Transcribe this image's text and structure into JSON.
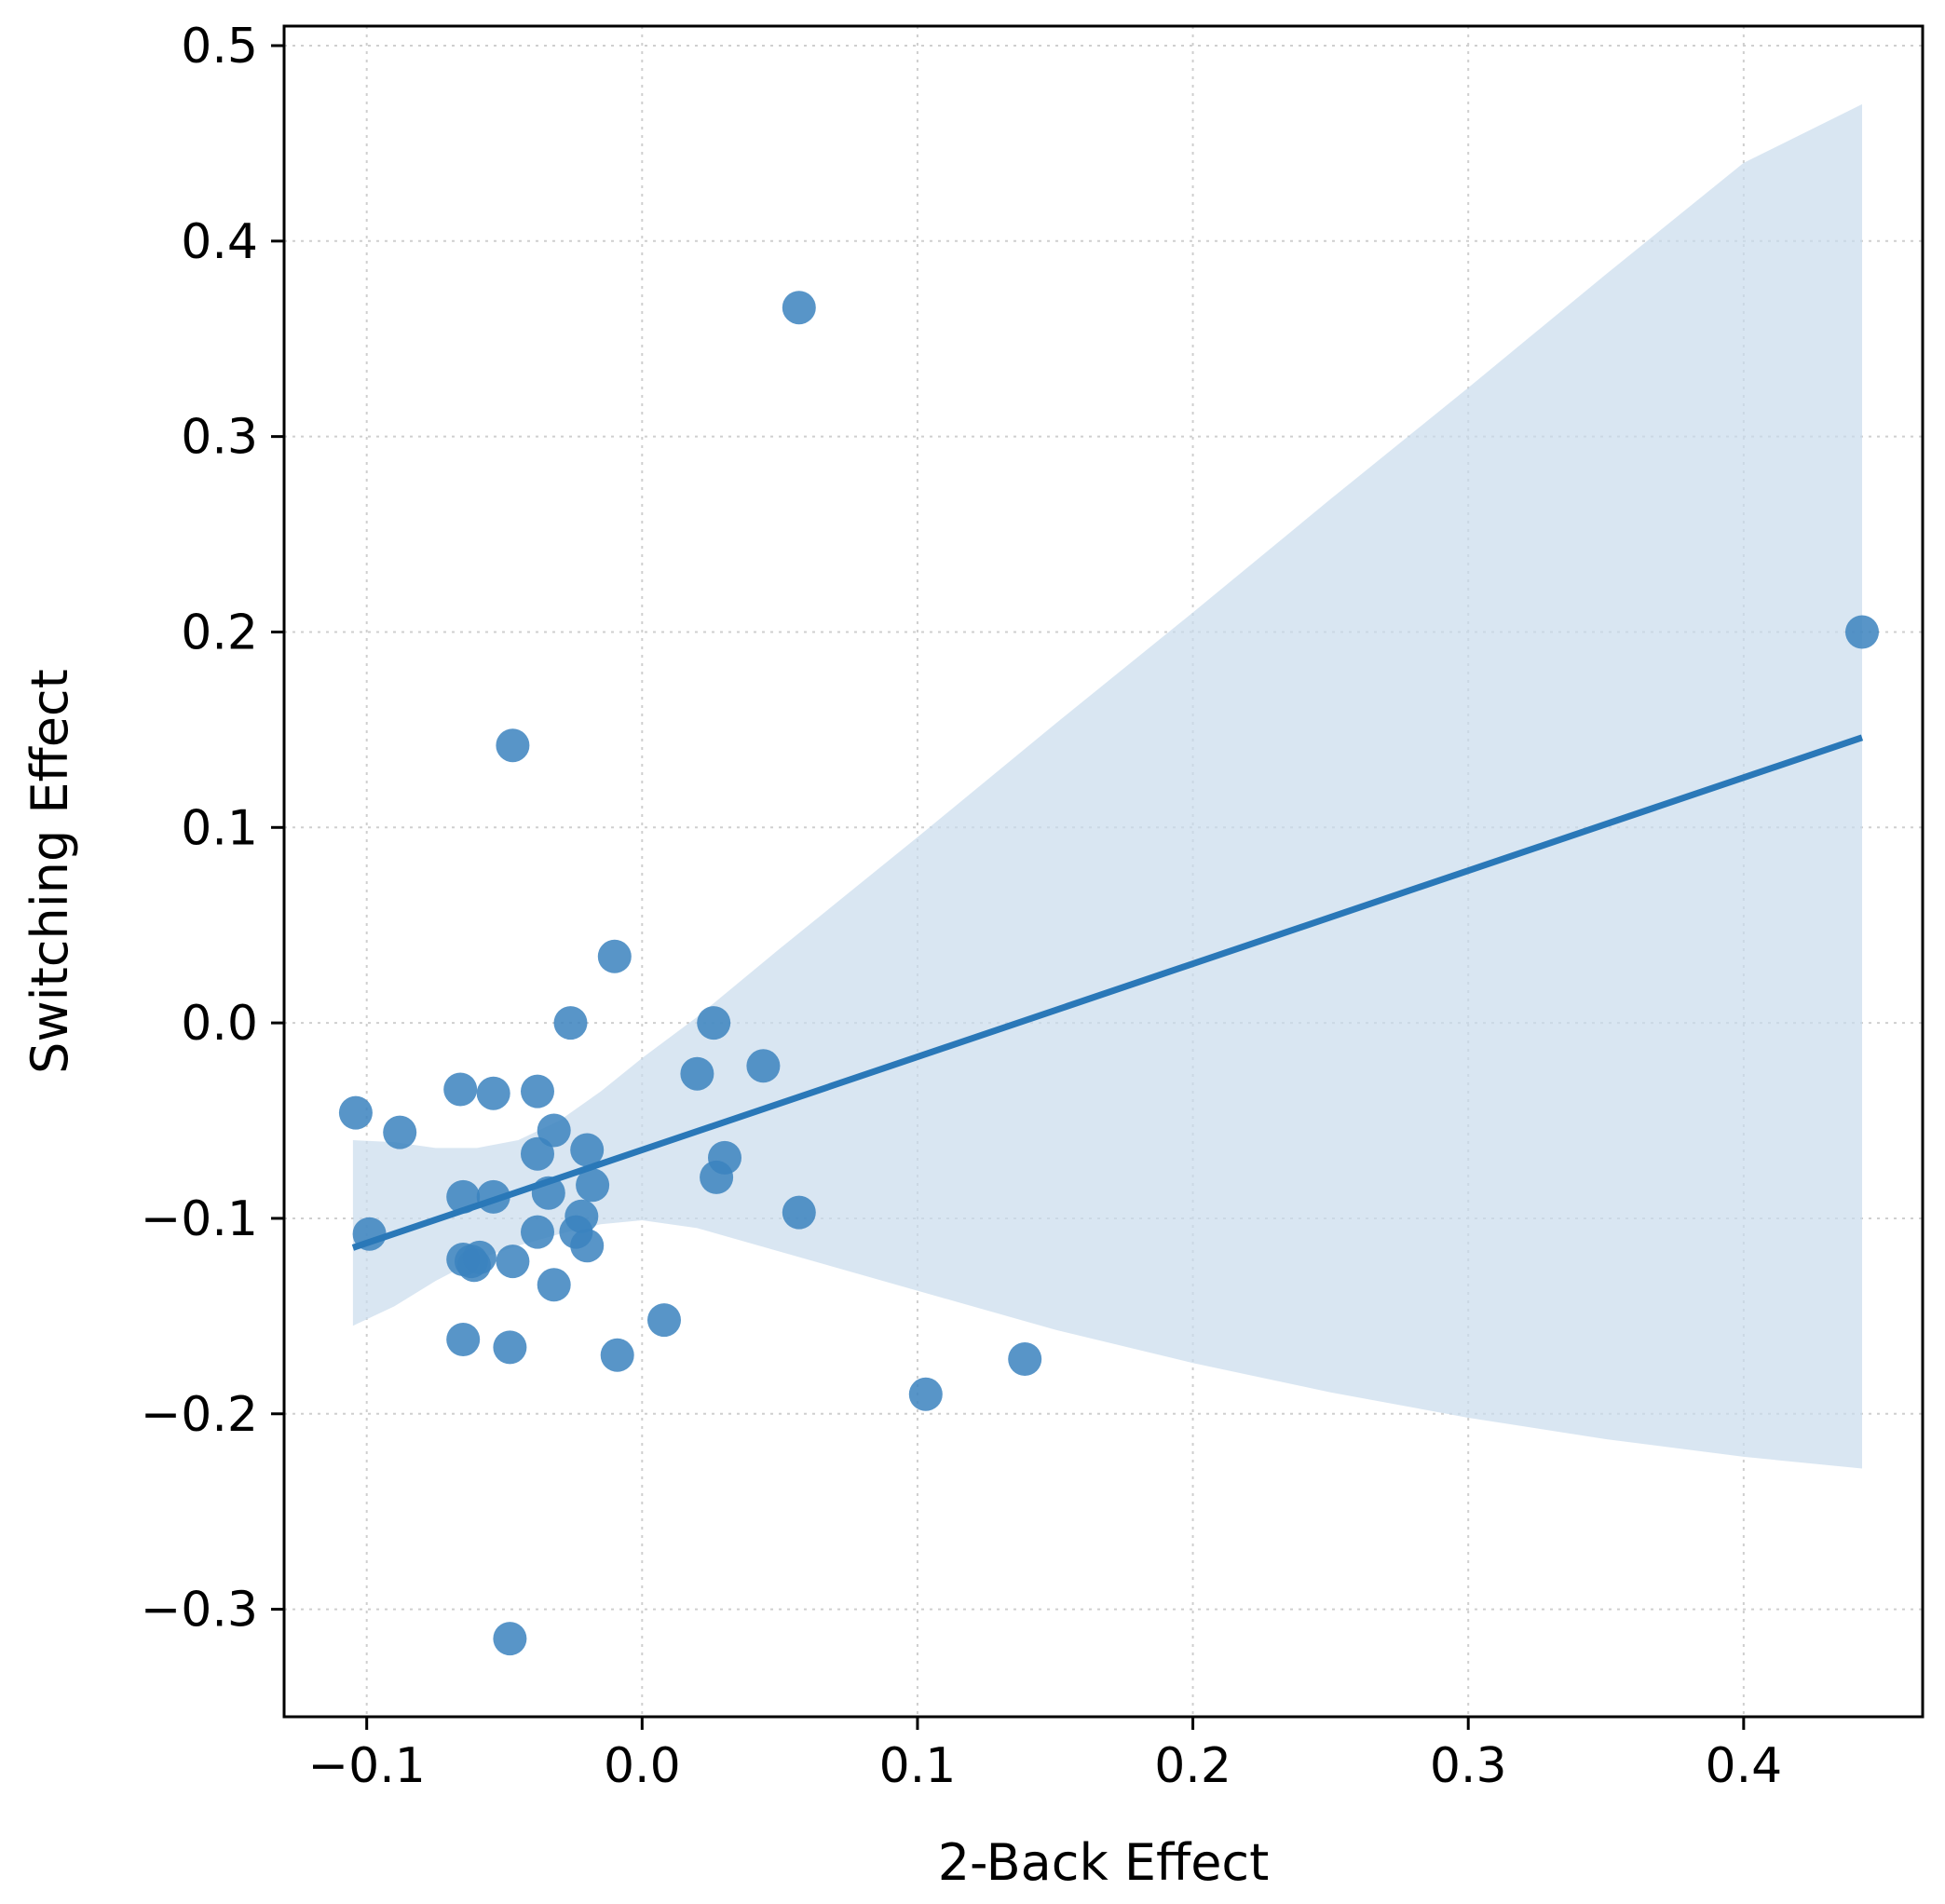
{
  "chart_data": {
    "type": "scatter",
    "xlabel": "2-Back Effect",
    "ylabel": "Switching Effect",
    "xlim": [
      -0.13,
      0.465
    ],
    "ylim": [
      -0.355,
      0.51
    ],
    "xticks": [
      -0.1,
      0.0,
      0.1,
      0.2,
      0.3,
      0.4
    ],
    "xtick_labels": [
      "−0.1",
      "0.0",
      "0.1",
      "0.2",
      "0.3",
      "0.4"
    ],
    "yticks": [
      -0.3,
      -0.2,
      -0.1,
      0.0,
      0.1,
      0.2,
      0.3,
      0.4,
      0.5
    ],
    "ytick_labels": [
      "−0.3",
      "−0.2",
      "−0.1",
      "0.0",
      "0.1",
      "0.2",
      "0.3",
      "0.4",
      "0.5"
    ],
    "grid": true,
    "colors": {
      "points": "#3b82be",
      "line": "#2a78b8",
      "band": "#c9dced"
    },
    "points": [
      {
        "x": -0.104,
        "y": -0.046
      },
      {
        "x": -0.099,
        "y": -0.108
      },
      {
        "x": -0.088,
        "y": -0.056
      },
      {
        "x": -0.066,
        "y": -0.034
      },
      {
        "x": -0.065,
        "y": -0.089
      },
      {
        "x": -0.065,
        "y": -0.121
      },
      {
        "x": -0.065,
        "y": -0.162
      },
      {
        "x": -0.062,
        "y": -0.122
      },
      {
        "x": -0.061,
        "y": -0.124
      },
      {
        "x": -0.059,
        "y": -0.12
      },
      {
        "x": -0.054,
        "y": -0.036
      },
      {
        "x": -0.054,
        "y": -0.089
      },
      {
        "x": -0.047,
        "y": 0.142
      },
      {
        "x": -0.047,
        "y": -0.122
      },
      {
        "x": -0.048,
        "y": -0.166
      },
      {
        "x": -0.048,
        "y": -0.315
      },
      {
        "x": -0.038,
        "y": -0.035
      },
      {
        "x": -0.038,
        "y": -0.067
      },
      {
        "x": -0.038,
        "y": -0.107
      },
      {
        "x": -0.032,
        "y": -0.055
      },
      {
        "x": -0.034,
        "y": -0.087
      },
      {
        "x": -0.032,
        "y": -0.134
      },
      {
        "x": -0.026,
        "y": 0.0
      },
      {
        "x": -0.022,
        "y": -0.099
      },
      {
        "x": -0.024,
        "y": -0.107
      },
      {
        "x": -0.02,
        "y": -0.065
      },
      {
        "x": -0.02,
        "y": -0.114
      },
      {
        "x": -0.018,
        "y": -0.083
      },
      {
        "x": -0.01,
        "y": 0.034
      },
      {
        "x": -0.009,
        "y": -0.17
      },
      {
        "x": 0.008,
        "y": -0.152
      },
      {
        "x": 0.02,
        "y": -0.026
      },
      {
        "x": 0.026,
        "y": 0.0
      },
      {
        "x": 0.027,
        "y": -0.079
      },
      {
        "x": 0.03,
        "y": -0.069
      },
      {
        "x": 0.044,
        "y": -0.022
      },
      {
        "x": 0.057,
        "y": 0.366
      },
      {
        "x": 0.057,
        "y": -0.097
      },
      {
        "x": 0.103,
        "y": -0.19
      },
      {
        "x": 0.139,
        "y": -0.172
      },
      {
        "x": 0.443,
        "y": 0.2
      }
    ],
    "regression": {
      "x": [
        -0.105,
        0.443
      ],
      "y": [
        -0.115,
        0.146
      ]
    },
    "confidence_band": {
      "x": [
        -0.105,
        -0.09,
        -0.075,
        -0.06,
        -0.045,
        -0.03,
        -0.015,
        0.0,
        0.02,
        0.05,
        0.1,
        0.15,
        0.2,
        0.25,
        0.3,
        0.35,
        0.4,
        0.443
      ],
      "upper": [
        -0.06,
        -0.061,
        -0.064,
        -0.064,
        -0.06,
        -0.05,
        -0.035,
        -0.018,
        0.003,
        0.038,
        0.095,
        0.153,
        0.21,
        0.268,
        0.325,
        0.383,
        0.44,
        0.47
      ],
      "lower": [
        -0.155,
        -0.145,
        -0.132,
        -0.121,
        -0.114,
        -0.108,
        -0.103,
        -0.101,
        -0.105,
        -0.117,
        -0.137,
        -0.157,
        -0.174,
        -0.189,
        -0.202,
        -0.213,
        -0.222,
        -0.228
      ]
    }
  }
}
